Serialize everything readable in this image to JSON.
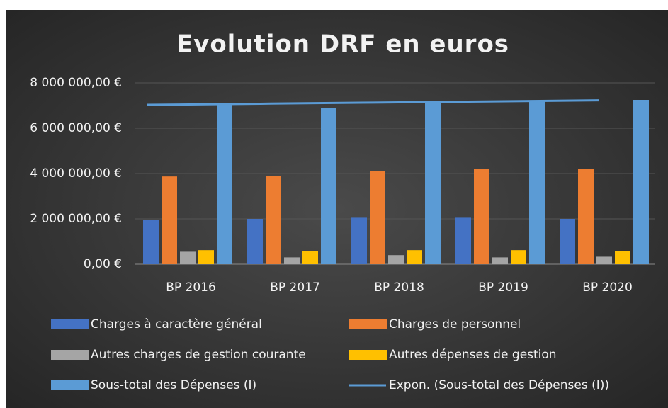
{
  "chart_data": {
    "type": "bar",
    "title": "Evolution DRF en euros",
    "categories": [
      "BP 2016",
      "BP 2017",
      "BP 2018",
      "BP 2019",
      "BP 2020"
    ],
    "series": [
      {
        "name": "Charges à caractère général",
        "color": "#4472c4",
        "values": [
          1950000,
          2000000,
          2050000,
          2050000,
          2000000
        ]
      },
      {
        "name": "Charges de personnel",
        "color": "#ed7d31",
        "values": [
          3870000,
          3900000,
          4100000,
          4200000,
          4200000
        ]
      },
      {
        "name": "Autres charges de gestion courante",
        "color": "#a5a5a5",
        "values": [
          550000,
          300000,
          400000,
          300000,
          330000
        ]
      },
      {
        "name": "Autres dépenses de gestion",
        "color": "#ffc000",
        "values": [
          620000,
          580000,
          620000,
          620000,
          580000
        ]
      },
      {
        "name": "Sous-total des Dépenses  (I)",
        "color": "#5b9bd5",
        "values": [
          7050000,
          6900000,
          7200000,
          7200000,
          7250000
        ]
      },
      {
        "name": "Expon. (Sous-total des Dépenses  (I))",
        "color": "#5b9bd5",
        "type": "line",
        "values": [
          7030000,
          7080000,
          7130000,
          7180000,
          7230000
        ]
      }
    ],
    "ylim": [
      0,
      8000000
    ],
    "yticks": [
      {
        "value": 0,
        "label": "0,00 €"
      },
      {
        "value": 2000000,
        "label": "2 000 000,00 €"
      },
      {
        "value": 4000000,
        "label": "4 000 000,00 €"
      },
      {
        "value": 6000000,
        "label": "6 000 000,00 €"
      },
      {
        "value": 8000000,
        "label": "8 000 000,00 €"
      }
    ],
    "grid": true
  }
}
